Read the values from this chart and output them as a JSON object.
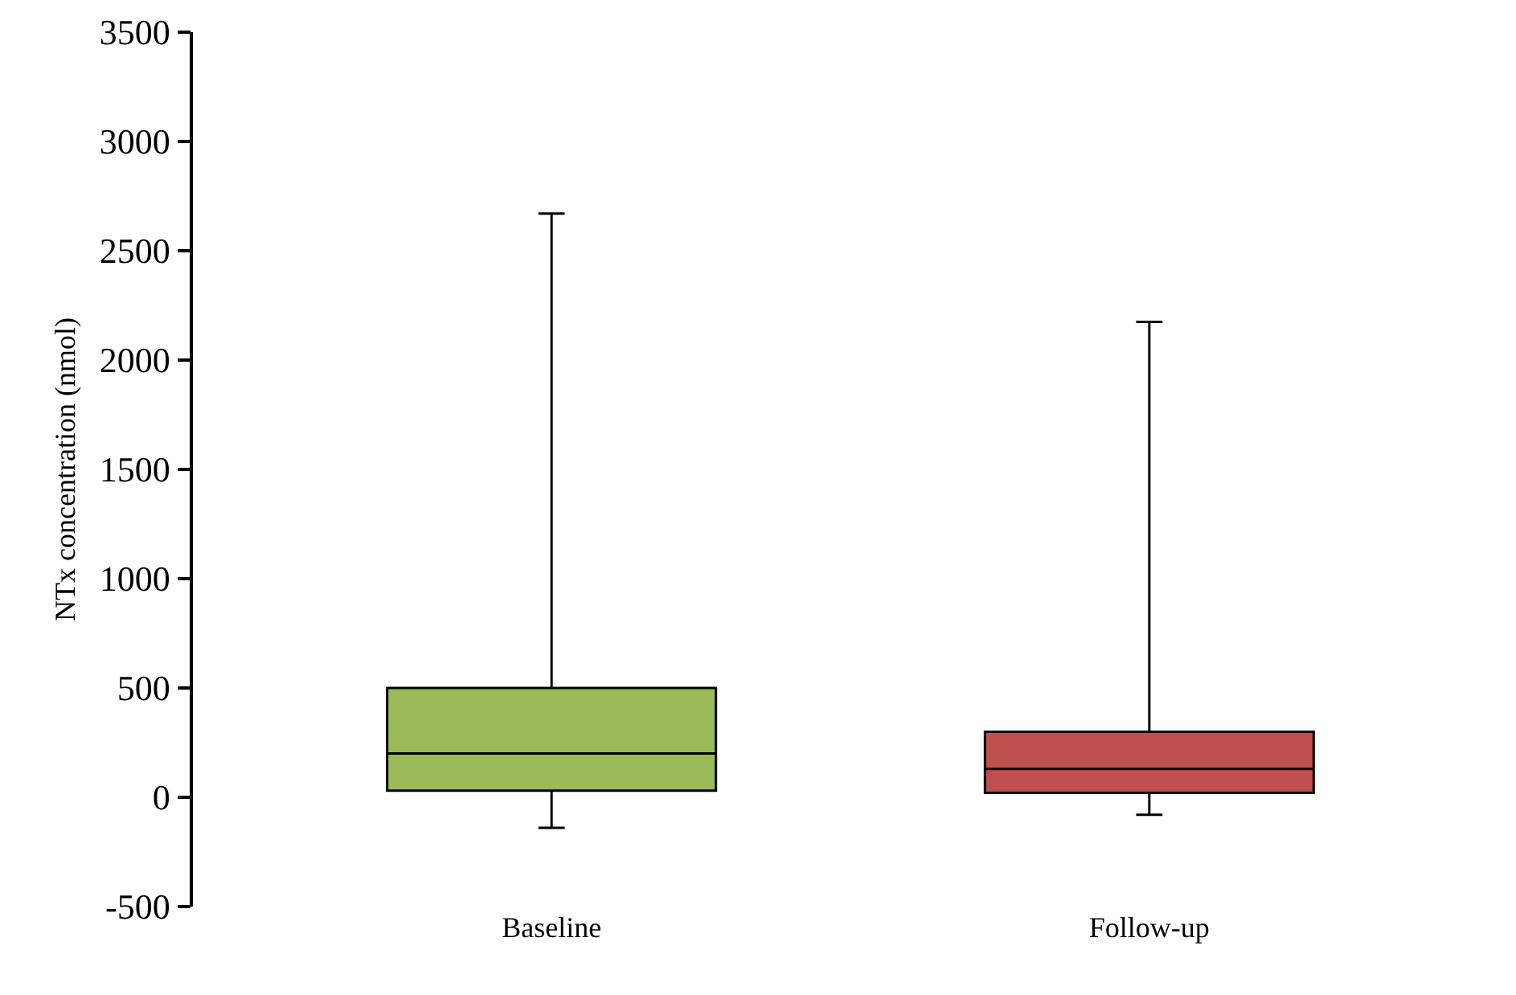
{
  "chart_data": {
    "type": "box",
    "ylabel": "NTx concentration (nmol)",
    "categories": [
      "Baseline",
      "Follow-up"
    ],
    "boxes": [
      {
        "low": -140,
        "q1": 30,
        "median": 200,
        "q3": 500,
        "high": 2670
      },
      {
        "low": -80,
        "q1": 20,
        "median": 130,
        "q3": 300,
        "high": 2175
      }
    ],
    "colors": [
      "#9bbb59",
      "#c0504d"
    ],
    "ylim": [
      -500,
      3500
    ],
    "yticks": [
      -500,
      0,
      500,
      1000,
      1500,
      2000,
      2500,
      3000,
      3500
    ]
  }
}
